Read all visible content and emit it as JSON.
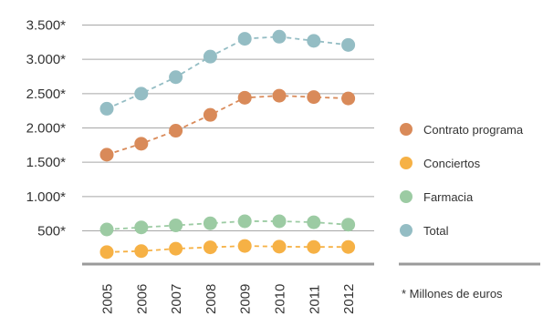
{
  "chart_data": {
    "type": "line",
    "categories": [
      "2005",
      "2006",
      "2007",
      "2008",
      "2009",
      "2010",
      "2011",
      "2012"
    ],
    "y_tick_labels": [
      "3.500*",
      "3.000*",
      "2.500*",
      "2.000*",
      "1.500*",
      "1.000*",
      "500*"
    ],
    "y_tick_values": [
      3500,
      3000,
      2500,
      2000,
      1500,
      1000,
      500
    ],
    "ylim": [
      0,
      3800
    ],
    "grid": true,
    "legend_position": "right",
    "footnote": "* Millones de euros",
    "series": [
      {
        "name": "Contrato programa",
        "color": "#d98a59",
        "values": [
          1610,
          1770,
          1960,
          2190,
          2440,
          2470,
          2450,
          2430
        ]
      },
      {
        "name": "Conciertos",
        "color": "#f6b145",
        "values": [
          190,
          205,
          240,
          260,
          280,
          270,
          265,
          265
        ]
      },
      {
        "name": "Farmacia",
        "color": "#9ccba3",
        "values": [
          520,
          550,
          580,
          610,
          640,
          640,
          625,
          590
        ]
      },
      {
        "name": "Total",
        "color": "#94bdc4",
        "values": [
          2280,
          2500,
          2740,
          3040,
          3300,
          3330,
          3270,
          3210
        ]
      }
    ]
  }
}
